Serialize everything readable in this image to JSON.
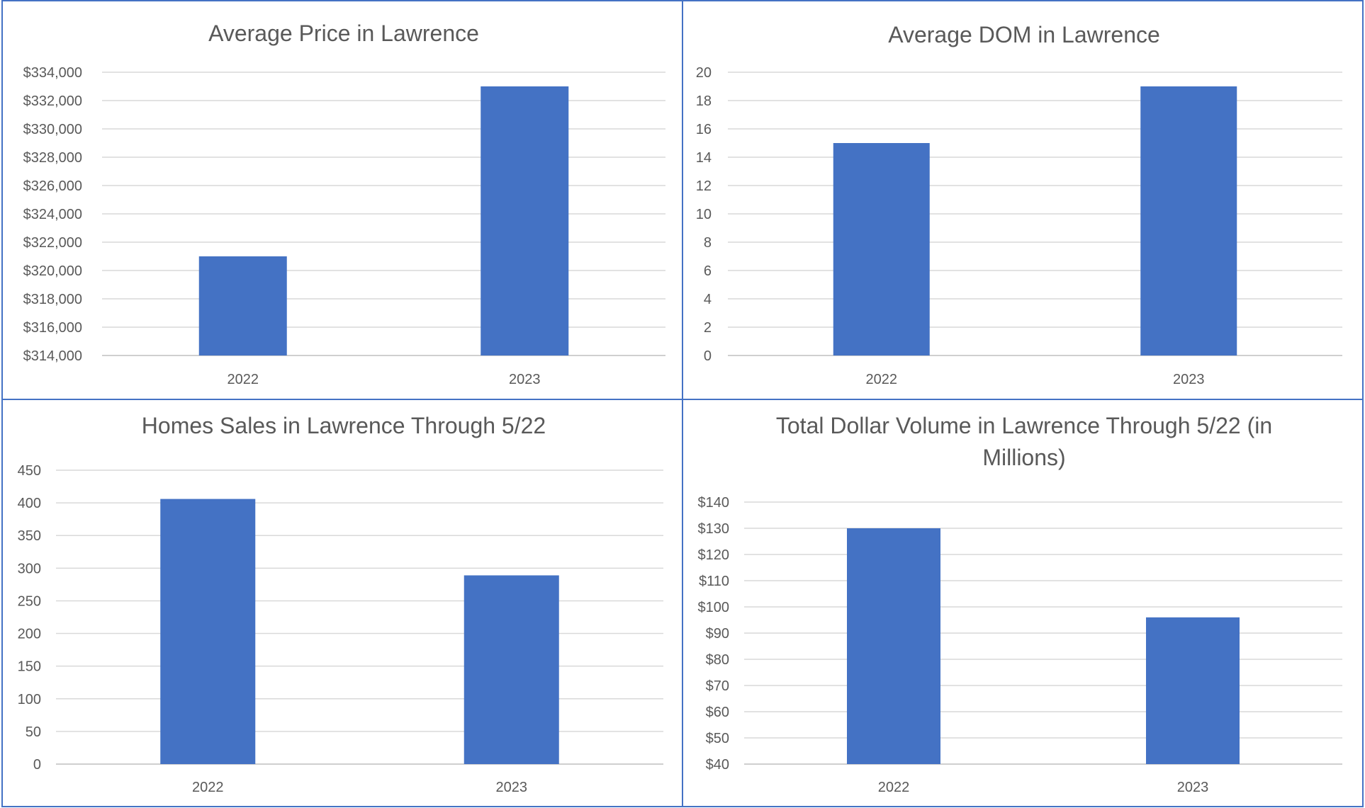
{
  "colors": {
    "bar": "#4472c4",
    "border": "#4472c4",
    "grid": "#d9d9d9",
    "text": "#595959"
  },
  "chart_data": [
    {
      "type": "bar",
      "title": "Average Price in Lawrence",
      "categories": [
        "2022",
        "2023"
      ],
      "values": [
        321000,
        333000
      ],
      "ylim": [
        314000,
        334000
      ],
      "yticks": [
        314000,
        316000,
        318000,
        320000,
        322000,
        324000,
        326000,
        328000,
        330000,
        332000,
        334000
      ],
      "ytick_labels": [
        "$314,000",
        "$316,000",
        "$318,000",
        "$320,000",
        "$322,000",
        "$324,000",
        "$326,000",
        "$328,000",
        "$330,000",
        "$332,000",
        "$334,000"
      ],
      "grid": true,
      "legend": "none"
    },
    {
      "type": "bar",
      "title": "Average DOM in Lawrence",
      "categories": [
        "2022",
        "2023"
      ],
      "values": [
        15,
        19
      ],
      "ylim": [
        0,
        20
      ],
      "yticks": [
        0,
        2,
        4,
        6,
        8,
        10,
        12,
        14,
        16,
        18,
        20
      ],
      "ytick_labels": [
        "0",
        "2",
        "4",
        "6",
        "8",
        "10",
        "12",
        "14",
        "16",
        "18",
        "20"
      ],
      "grid": true,
      "legend": "none"
    },
    {
      "type": "bar",
      "title": "Homes Sales in Lawrence Through 5/22",
      "categories": [
        "2022",
        "2023"
      ],
      "values": [
        406,
        289
      ],
      "ylim": [
        0,
        450
      ],
      "yticks": [
        0,
        50,
        100,
        150,
        200,
        250,
        300,
        350,
        400,
        450
      ],
      "ytick_labels": [
        "0",
        "50",
        "100",
        "150",
        "200",
        "250",
        "300",
        "350",
        "400",
        "450"
      ],
      "grid": true,
      "legend": "none"
    },
    {
      "type": "bar",
      "title": "Total Dollar Volume in Lawrence Through 5/22 (in Millions)",
      "title_lines": [
        "Total Dollar Volume in Lawrence Through 5/22 (in",
        "Millions)"
      ],
      "categories": [
        "2022",
        "2023"
      ],
      "values": [
        130,
        96
      ],
      "ylim": [
        40,
        140
      ],
      "yticks": [
        40,
        50,
        60,
        70,
        80,
        90,
        100,
        110,
        120,
        130,
        140
      ],
      "ytick_labels": [
        "$40",
        "$50",
        "$60",
        "$70",
        "$80",
        "$90",
        "$100",
        "$110",
        "$120",
        "$130",
        "$140"
      ],
      "grid": true,
      "legend": "none"
    }
  ]
}
